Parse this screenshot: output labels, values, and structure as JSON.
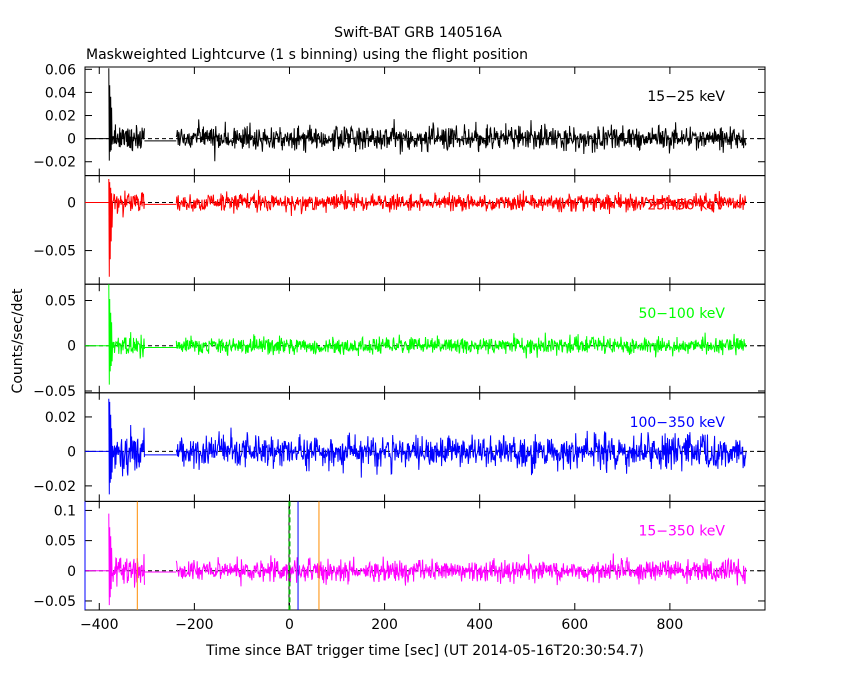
{
  "chart_data": {
    "type": "line",
    "title": "Swift-BAT GRB 140516A",
    "subtitle": "Maskweighted Lightcurve (1 s binning) using the flight position",
    "xlabel": "Time since BAT trigger time [sec] (UT 2014-05-16T20:30:54.7)",
    "ylabel": "Counts/sec/det",
    "xlim": [
      -430,
      1000
    ],
    "x_ticks": [
      -400,
      -200,
      0,
      200,
      400,
      600,
      800
    ],
    "x_tick_labels": [
      "−400",
      "−200",
      "0",
      "200",
      "400",
      "600",
      "800"
    ],
    "grid": false,
    "panels": [
      {
        "name": "15-25 keV",
        "label": "15−25 keV",
        "color": "#000000",
        "ylim": [
          -0.032,
          0.062
        ],
        "y_ticks": [
          -0.02,
          0,
          0.02,
          0.04,
          0.06
        ],
        "y_tick_labels": [
          "−0.02",
          "0",
          "0.02",
          "0.04",
          "0.06"
        ],
        "noise_sigma": 0.0075,
        "burst_peak": 0.058,
        "burst_trough": -0.021
      },
      {
        "name": "25-50 keV",
        "label": "25−50 keV",
        "color": "#ff0000",
        "ylim": [
          -0.085,
          0.028
        ],
        "y_ticks": [
          -0.05,
          0
        ],
        "y_tick_labels": [
          "−0.05",
          "0"
        ],
        "noise_sigma": 0.0065,
        "burst_peak": 0.027,
        "burst_trough": -0.085
      },
      {
        "name": "50-100 keV",
        "label": "50−100 keV",
        "color": "#00ff00",
        "ylim": [
          -0.052,
          0.068
        ],
        "y_ticks": [
          -0.05,
          0,
          0.05
        ],
        "y_tick_labels": [
          "−0.05",
          "0",
          "0.05"
        ],
        "noise_sigma": 0.0065,
        "burst_peak": 0.065,
        "burst_trough": -0.045
      },
      {
        "name": "100-350 keV",
        "label": "100−350 keV",
        "color": "#0000ff",
        "ylim": [
          -0.029,
          0.034
        ],
        "y_ticks": [
          -0.02,
          0,
          0.02
        ],
        "y_tick_labels": [
          "−0.02",
          "0",
          "0.02"
        ],
        "noise_sigma": 0.0065,
        "burst_peak": 0.033,
        "burst_trough": -0.027
      },
      {
        "name": "15-350 keV",
        "label": "15−350 keV",
        "color": "#ff00ff",
        "ylim": [
          -0.065,
          0.115
        ],
        "y_ticks": [
          -0.05,
          0,
          0.05,
          0.1
        ],
        "y_tick_labels": [
          "−0.05",
          "0",
          "0.05",
          "0.1"
        ],
        "noise_sigma": 0.013,
        "burst_peak": 0.095,
        "burst_trough": -0.055
      }
    ],
    "segments": [
      {
        "type": "flat",
        "x": [
          -430,
          -380
        ],
        "y": 0
      },
      {
        "type": "noise",
        "x": [
          -380,
          -305
        ]
      },
      {
        "type": "flat",
        "x": [
          -305,
          -238
        ],
        "y": -0.002
      },
      {
        "type": "noise",
        "x": [
          -238,
          960
        ]
      }
    ],
    "vertical_markers": [
      {
        "x": -430,
        "color": "#0000ff",
        "style": "solid"
      },
      {
        "x": -320,
        "color": "#ff8c00",
        "style": "solid"
      },
      {
        "x": -1,
        "color": "#000000",
        "style": "solid"
      },
      {
        "x": 0,
        "color": "#00b000",
        "style": "dashed"
      },
      {
        "x": 18,
        "color": "#0000ff",
        "style": "solid"
      },
      {
        "x": 62,
        "color": "#ff8c00",
        "style": "solid"
      }
    ]
  }
}
